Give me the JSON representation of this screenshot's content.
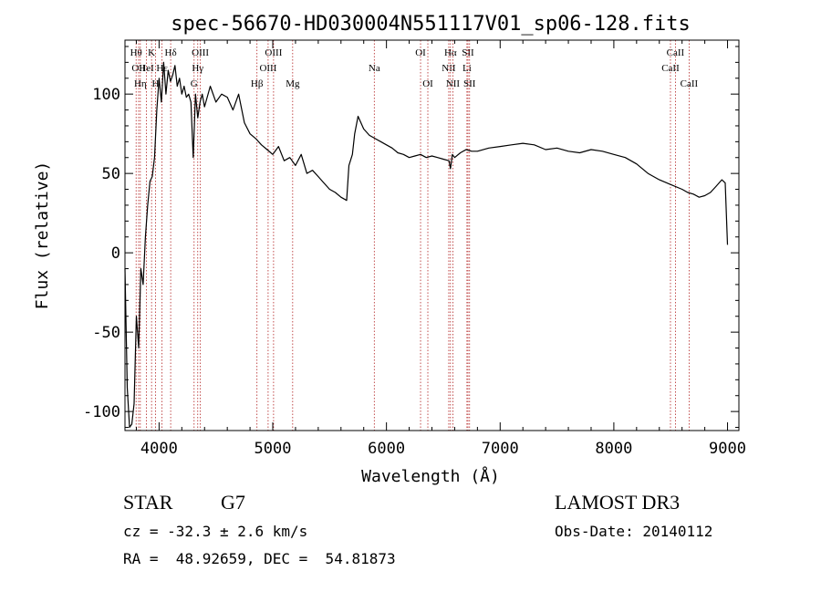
{
  "chart_data": {
    "type": "line",
    "title": "spec-56670-HD030004N551117V01_sp06-128.fits",
    "xlabel": "Wavelength (Å)",
    "ylabel": "Flux (relative)",
    "xlim": [
      3700,
      9100
    ],
    "ylim": [
      -112,
      134
    ],
    "x_ticks": [
      4000,
      5000,
      6000,
      7000,
      8000,
      9000
    ],
    "y_ticks": [
      -100,
      -50,
      0,
      50,
      100
    ],
    "grid": false,
    "series": [
      {
        "values_x": [
          3700,
          3720,
          3740,
          3760,
          3780,
          3800,
          3820,
          3840,
          3860,
          3880,
          3900,
          3920,
          3940,
          3960,
          3980,
          4000,
          4020,
          4040,
          4060,
          4080,
          4100,
          4120,
          4140,
          4160,
          4180,
          4200,
          4220,
          4240,
          4260,
          4280,
          4300,
          4320,
          4340,
          4360,
          4380,
          4400,
          4450,
          4500,
          4550,
          4600,
          4650,
          4700,
          4750,
          4800,
          4850,
          4900,
          4950,
          5000,
          5050,
          5100,
          5150,
          5200,
          5250,
          5300,
          5350,
          5400,
          5450,
          5500,
          5550,
          5600,
          5650,
          5670,
          5700,
          5720,
          5750,
          5800,
          5850,
          5900,
          5950,
          6000,
          6050,
          6100,
          6150,
          6200,
          6250,
          6300,
          6350,
          6400,
          6450,
          6500,
          6550,
          6563,
          6580,
          6600,
          6650,
          6700,
          6750,
          6800,
          6900,
          7000,
          7100,
          7200,
          7300,
          7400,
          7500,
          7600,
          7700,
          7800,
          7900,
          8000,
          8100,
          8200,
          8300,
          8400,
          8500,
          8600,
          8650,
          8700,
          8750,
          8800,
          8850,
          8900,
          8950,
          8980,
          9000
        ],
        "values_y": [
          -10,
          -85,
          -110,
          -108,
          -95,
          -40,
          -60,
          -10,
          -20,
          10,
          30,
          45,
          48,
          60,
          90,
          110,
          95,
          120,
          100,
          115,
          108,
          112,
          118,
          105,
          110,
          100,
          105,
          98,
          100,
          95,
          60,
          100,
          85,
          95,
          100,
          92,
          105,
          95,
          100,
          98,
          90,
          100,
          82,
          75,
          72,
          68,
          65,
          62,
          67,
          58,
          60,
          55,
          62,
          50,
          52,
          48,
          44,
          40,
          38,
          35,
          33,
          55,
          62,
          75,
          86,
          78,
          74,
          72,
          70,
          68,
          66,
          63,
          62,
          60,
          61,
          62,
          60,
          61,
          60,
          59,
          58,
          53,
          62,
          60,
          63,
          65,
          64,
          64,
          66,
          67,
          68,
          69,
          68,
          65,
          66,
          64,
          63,
          65,
          64,
          62,
          60,
          56,
          50,
          46,
          43,
          40,
          38,
          37,
          35,
          36,
          38,
          42,
          46,
          44,
          5
        ]
      }
    ],
    "line_markers": [
      {
        "wl": 3798,
        "label": "Hθ",
        "row": 1
      },
      {
        "wl": 3820,
        "label": "OII",
        "row": 2
      },
      {
        "wl": 3835,
        "label": "Hη",
        "row": 3
      },
      {
        "wl": 3889,
        "label": "HeI",
        "row": 2
      },
      {
        "wl": 3934,
        "label": "K",
        "row": 1
      },
      {
        "wl": 3969,
        "label": "H",
        "row": 3
      },
      {
        "wl": 4026,
        "label": "Hε",
        "row": 2
      },
      {
        "wl": 4102,
        "label": "Hδ",
        "row": 1
      },
      {
        "wl": 4308,
        "label": "G",
        "row": 3
      },
      {
        "wl": 4340,
        "label": "Hγ",
        "row": 2
      },
      {
        "wl": 4363,
        "label": "OIII",
        "row": 1
      },
      {
        "wl": 4861,
        "label": "Hβ",
        "row": 3
      },
      {
        "wl": 4959,
        "label": "OIII",
        "row": 2
      },
      {
        "wl": 5007,
        "label": "OIII",
        "row": 1
      },
      {
        "wl": 5175,
        "label": "Mg",
        "row": 3
      },
      {
        "wl": 5893,
        "label": "Na",
        "row": 2
      },
      {
        "wl": 6300,
        "label": "OI",
        "row": 1
      },
      {
        "wl": 6364,
        "label": "OI",
        "row": 3
      },
      {
        "wl": 6548,
        "label": "NII",
        "row": 2
      },
      {
        "wl": 6563,
        "label": "Hα",
        "row": 1
      },
      {
        "wl": 6584,
        "label": "NII",
        "row": 3
      },
      {
        "wl": 6708,
        "label": "Li",
        "row": 2
      },
      {
        "wl": 6717,
        "label": "SII",
        "row": 1
      },
      {
        "wl": 6731,
        "label": "SII",
        "row": 3
      },
      {
        "wl": 8498,
        "label": "CaII",
        "row": 2
      },
      {
        "wl": 8542,
        "label": "CaII",
        "row": 1
      },
      {
        "wl": 8662,
        "label": "CaII",
        "row": 3
      }
    ],
    "colors": {
      "spectrum": "#000000",
      "markers": "#b22222"
    }
  },
  "info": {
    "object_class": "STAR",
    "subclass": "G7",
    "survey": "LAMOST DR3",
    "redshift_line": "cz = -32.3 ± 2.6 km/s",
    "obs_date_line": "Obs-Date: 20140112",
    "coords_line": "RA =  48.92659, DEC =  54.81873"
  }
}
